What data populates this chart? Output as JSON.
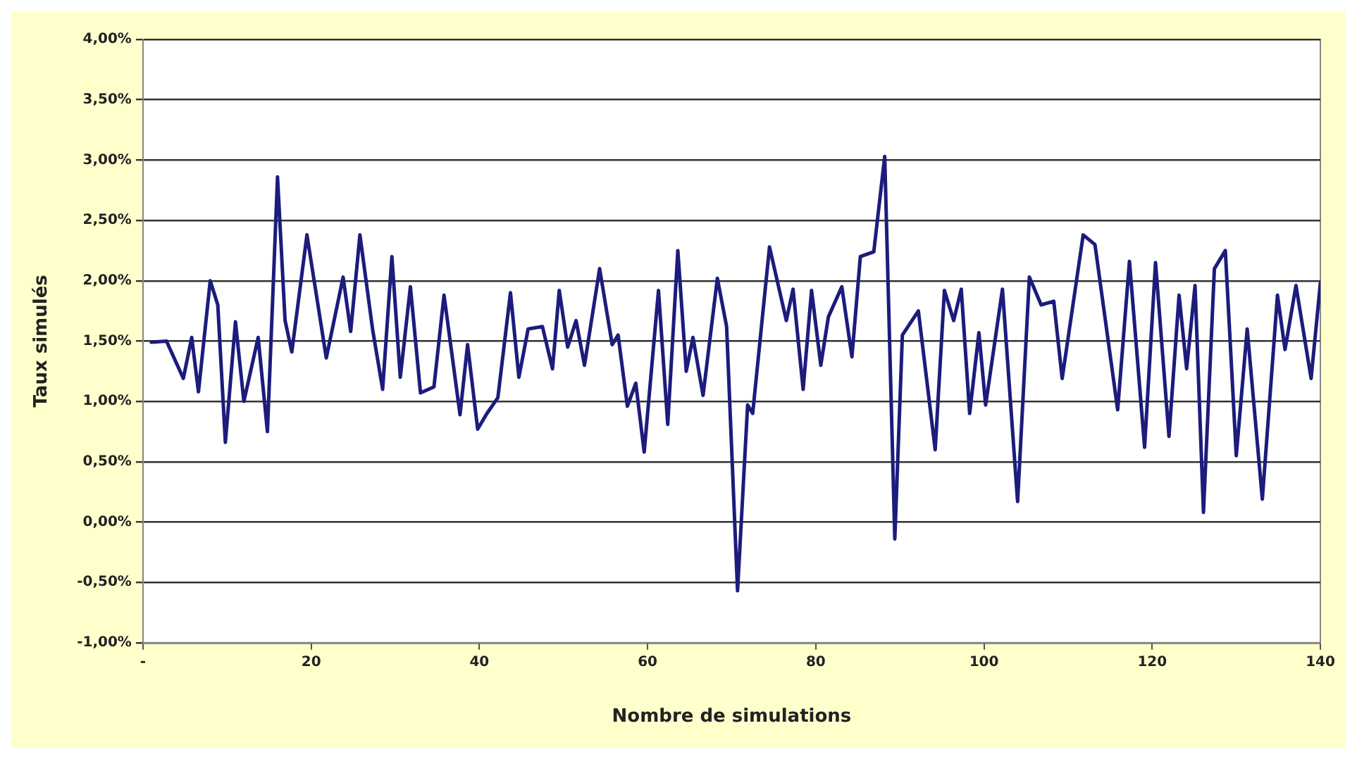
{
  "chart_data": {
    "type": "line",
    "xlabel": "Nombre de simulations",
    "ylabel": "Taux simulés",
    "x": [
      1,
      2.8,
      4.8,
      5.8,
      6.6,
      8,
      8.9,
      9.8,
      11,
      12,
      13.7,
      14.8,
      16,
      16.9,
      17.7,
      19.5,
      21.8,
      23.8,
      24.7,
      25.8,
      27.3,
      28.5,
      29.6,
      30.6,
      31.8,
      33,
      34.6,
      35.8,
      37.7,
      38.6,
      39.8,
      40.9,
      42.2,
      43.7,
      44.7,
      45.8,
      47.5,
      48.7,
      49.5,
      50.5,
      51.5,
      52.5,
      54.3,
      55.8,
      56.5,
      57.6,
      58.6,
      59.6,
      61.3,
      62.4,
      63.6,
      64.6,
      65.4,
      66.6,
      68.3,
      69.4,
      70.7,
      71.9,
      72.5,
      74.5,
      76.5,
      77.3,
      78.5,
      79.5,
      80.6,
      81.5,
      83.1,
      84.3,
      85.3,
      86.9,
      88.2,
      89.4,
      90.3,
      92.2,
      94.2,
      95.3,
      96.4,
      97.3,
      98.3,
      99.4,
      100.2,
      102.2,
      104,
      105.4,
      106.8,
      108.3,
      109.3,
      111.8,
      113.2,
      115.9,
      117.3,
      119.1,
      120.4,
      122,
      123.2,
      124.1,
      125.1,
      126.1,
      127.4,
      128.7,
      130,
      131.3,
      133.1,
      134.9,
      135.8,
      137.1,
      138.9,
      140
    ],
    "series": [
      {
        "color": "#1c1c7c",
        "values": [
          1.49,
          1.5,
          1.19,
          1.53,
          1.08,
          2.0,
          1.8,
          0.66,
          1.66,
          1.0,
          1.53,
          0.75,
          2.86,
          1.67,
          1.41,
          2.38,
          1.36,
          2.03,
          1.58,
          2.38,
          1.6,
          1.1,
          2.2,
          1.2,
          1.95,
          1.07,
          1.12,
          1.88,
          0.89,
          1.47,
          0.77,
          0.9,
          1.03,
          1.9,
          1.2,
          1.6,
          1.62,
          1.27,
          1.92,
          1.45,
          1.67,
          1.3,
          2.1,
          1.47,
          1.55,
          0.96,
          1.15,
          0.58,
          1.92,
          0.81,
          2.25,
          1.25,
          1.53,
          1.05,
          2.02,
          1.62,
          -0.57,
          0.97,
          0.9,
          2.28,
          1.67,
          1.93,
          1.1,
          1.92,
          1.3,
          1.7,
          1.95,
          1.37,
          2.2,
          2.24,
          3.03,
          -0.14,
          1.55,
          1.75,
          0.6,
          1.92,
          1.67,
          1.93,
          0.9,
          1.57,
          0.97,
          1.93,
          0.17,
          2.03,
          1.8,
          1.83,
          1.19,
          2.38,
          2.3,
          0.93,
          2.16,
          0.62,
          2.15,
          0.71,
          1.88,
          1.27,
          1.96,
          0.08,
          2.1,
          2.25,
          0.55,
          1.6,
          0.19,
          1.88,
          1.43,
          1.96,
          1.19,
          1.98
        ]
      }
    ],
    "xlim": [
      0,
      140
    ],
    "xticks": [
      {
        "value": 0,
        "label": "-"
      },
      20,
      40,
      60,
      80,
      100,
      120,
      140
    ],
    "ylim": [
      -1,
      4
    ],
    "yticks": [
      {
        "value": -1,
        "label": "-1,00%"
      },
      {
        "value": -0.5,
        "label": "-0,50%"
      },
      {
        "value": 0,
        "label": "0,00%"
      },
      {
        "value": 0.5,
        "label": "0,50%"
      },
      {
        "value": 1,
        "label": "1,00%"
      },
      {
        "value": 1.5,
        "label": "1,50%"
      },
      {
        "value": 2,
        "label": "2,00%"
      },
      {
        "value": 2.5,
        "label": "2,50%"
      },
      {
        "value": 3,
        "label": "3,00%"
      },
      {
        "value": 3.5,
        "label": "3,50%"
      },
      {
        "value": 4,
        "label": "4,00%"
      }
    ],
    "grid": "y",
    "legend": false,
    "marker": "none",
    "line_style": "solid"
  }
}
